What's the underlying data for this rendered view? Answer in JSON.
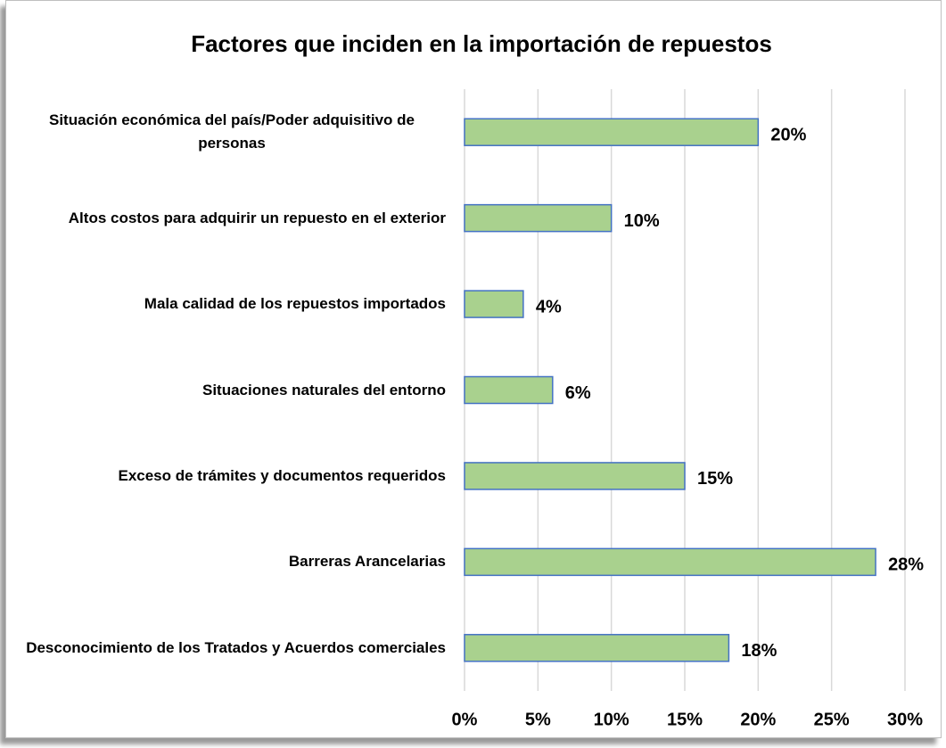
{
  "chart_data": {
    "type": "barh",
    "title": "Factores que inciden en la importación de repuestos",
    "categories": [
      "Situación económica del país/Poder adquisitivo de personas",
      "Altos costos para adquirir un repuesto en el exterior",
      "Mala calidad de los repuestos importados",
      "Situaciones naturales del entorno",
      "Exceso de trámites y documentos requeridos",
      "Barreras Arancelarias",
      "Desconocimiento de los Tratados y Acuerdos comerciales"
    ],
    "values": [
      20,
      10,
      4,
      6,
      15,
      28,
      18
    ],
    "value_labels": [
      "20%",
      "10%",
      "4%",
      "6%",
      "15%",
      "28%",
      "18%"
    ],
    "color": "#a9d18e",
    "edge_color": "#4472c4",
    "xlim": [
      0,
      30
    ],
    "xticks": [
      {
        "value": 0,
        "label": "0%"
      },
      {
        "value": 5,
        "label": "5%"
      },
      {
        "value": 10,
        "label": "10%"
      },
      {
        "value": 15,
        "label": "15%"
      },
      {
        "value": 20,
        "label": "20%"
      },
      {
        "value": 25,
        "label": "25%"
      },
      {
        "value": 30,
        "label": "30%"
      }
    ],
    "grid": true
  }
}
